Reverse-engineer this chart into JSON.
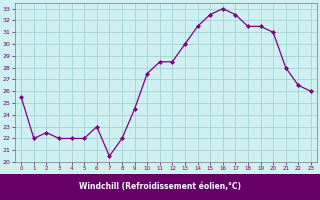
{
  "x": [
    0,
    1,
    2,
    3,
    4,
    5,
    6,
    7,
    8,
    9,
    10,
    11,
    12,
    13,
    14,
    15,
    16,
    17,
    18,
    19,
    20,
    21,
    22,
    23
  ],
  "y": [
    25.5,
    22.0,
    22.5,
    22.0,
    22.0,
    22.0,
    23.0,
    20.5,
    22.0,
    24.5,
    27.5,
    28.5,
    28.5,
    30.0,
    31.5,
    32.5,
    33.0,
    32.5,
    31.5,
    31.5,
    31.0,
    28.0,
    26.5,
    26.0
  ],
  "line_color": "#800080",
  "marker": "D",
  "marker_size": 2.0,
  "line_width": 0.9,
  "bg_color": "#cff0f0",
  "grid_color": "#99cccc",
  "xlabel": "Windchill (Refroidissement éolien,°C)",
  "xlim": [
    -0.5,
    23.5
  ],
  "ylim": [
    20,
    33.5
  ],
  "yticks": [
    20,
    21,
    22,
    23,
    24,
    25,
    26,
    27,
    28,
    29,
    30,
    31,
    32,
    33
  ],
  "xticks": [
    0,
    1,
    2,
    3,
    4,
    5,
    6,
    7,
    8,
    9,
    10,
    11,
    12,
    13,
    14,
    15,
    16,
    17,
    18,
    19,
    20,
    21,
    22,
    23
  ],
  "xlabel_color": "#ffffff",
  "xlabel_bg": "#660066",
  "tick_label_color": "#660066"
}
